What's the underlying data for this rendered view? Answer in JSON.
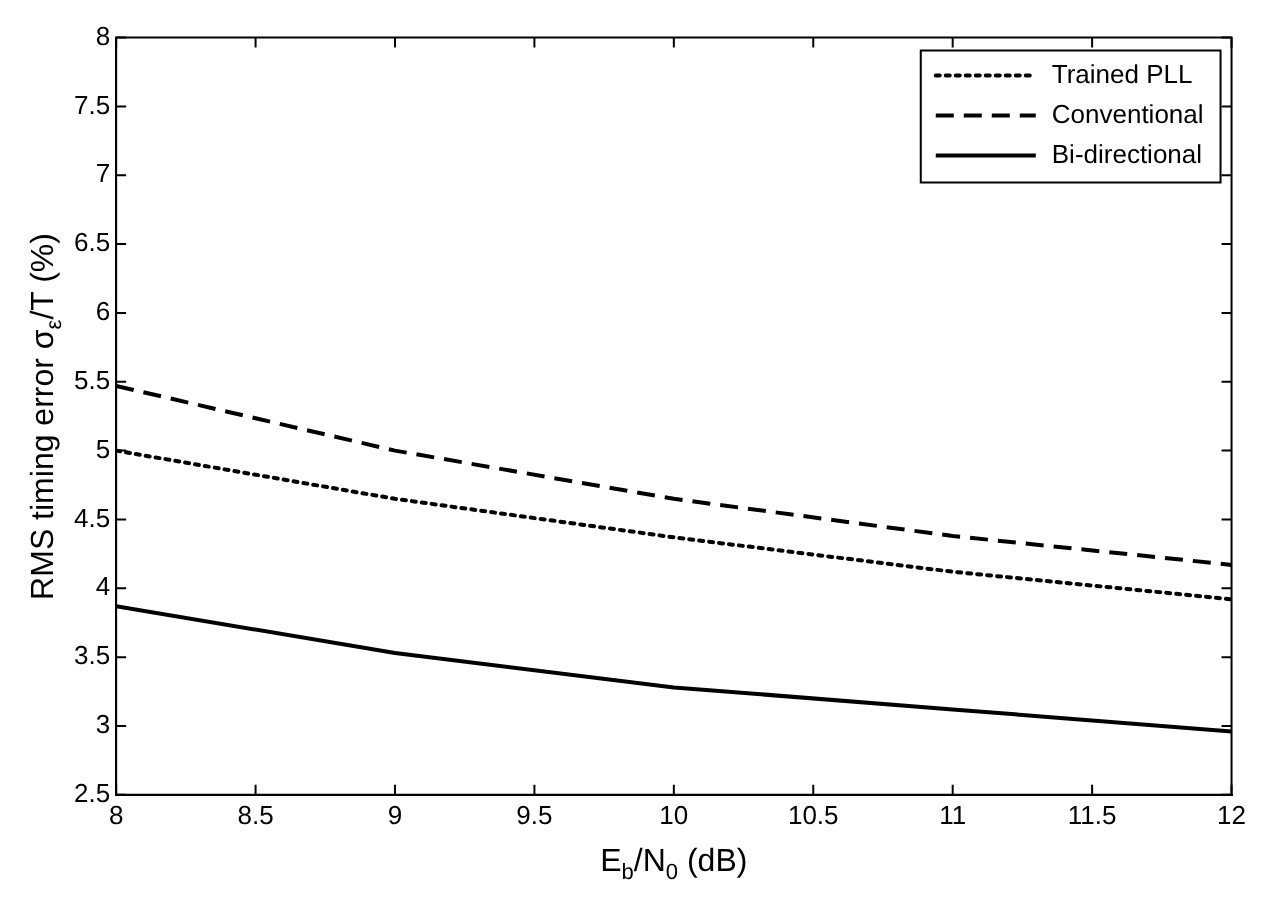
{
  "chart_data": {
    "type": "line",
    "xlabel": "E$_{b}$/N$_{0}$ (dB)",
    "ylabel": "RMS timing error σ$_{ε}$/T (%)",
    "x": [
      8,
      9,
      10,
      11,
      12
    ],
    "series": [
      {
        "name": "Trained PLL",
        "color": "#000000",
        "line_style": "dotted",
        "values": [
          5.0,
          4.65,
          4.37,
          4.12,
          3.92
        ]
      },
      {
        "name": "Conventional",
        "color": "#000000",
        "line_style": "dashed",
        "values": [
          5.47,
          5.0,
          4.65,
          4.38,
          4.17
        ]
      },
      {
        "name": "Bi-directional",
        "color": "#000000",
        "line_style": "solid",
        "values": [
          3.87,
          3.53,
          3.28,
          3.12,
          2.96
        ]
      }
    ],
    "xlim": [
      8,
      12
    ],
    "xticks": [
      8,
      8.5,
      9,
      9.5,
      10,
      10.5,
      11,
      11.5,
      12
    ],
    "ylim": [
      2.5,
      8
    ],
    "yticks": [
      2.5,
      3,
      3.5,
      4,
      4.5,
      5,
      5.5,
      6,
      6.5,
      7,
      7.5,
      8
    ],
    "grid": false,
    "legend": "top right",
    "marker": "none"
  }
}
